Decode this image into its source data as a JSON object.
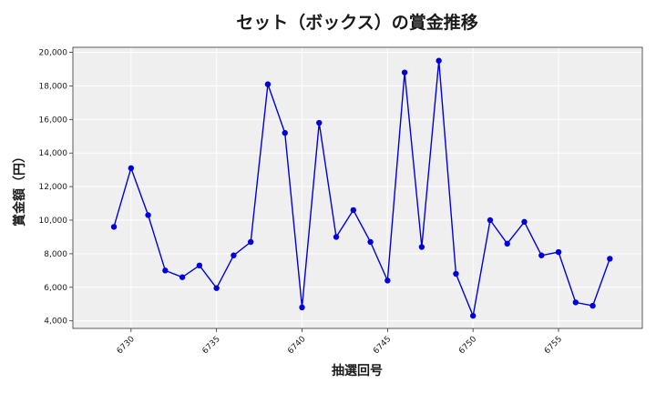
{
  "chart_data": {
    "type": "line",
    "title": "セット（ボックス）の賞金推移",
    "xlabel": "抽選回号",
    "ylabel": "賞金額（円）",
    "x": [
      6729,
      6730,
      6731,
      6732,
      6733,
      6734,
      6735,
      6736,
      6737,
      6738,
      6739,
      6740,
      6741,
      6742,
      6743,
      6744,
      6745,
      6746,
      6747,
      6748,
      6749,
      6750,
      6751,
      6752,
      6753,
      6754,
      6755,
      6756,
      6757,
      6758
    ],
    "series": [
      {
        "values": [
          9600,
          13100,
          10300,
          7000,
          6600,
          7300,
          5950,
          7900,
          8700,
          18100,
          15200,
          4800,
          15800,
          9000,
          10600,
          8700,
          6400,
          18800,
          8400,
          19500,
          6800,
          4300,
          10000,
          8600,
          9900,
          7900,
          8100,
          5100,
          4900,
          7700
        ],
        "color": "#0000dd"
      }
    ],
    "xlim": [
      6726.6,
      6759.9
    ],
    "ylim": [
      3550,
      20300
    ],
    "xticks": [
      6730,
      6735,
      6740,
      6745,
      6750,
      6755
    ],
    "xtick_labels": [
      "6730",
      "6735",
      "6740",
      "6745",
      "6750",
      "6755"
    ],
    "yticks": [
      4000,
      6000,
      8000,
      10000,
      12000,
      14000,
      16000,
      18000,
      20000
    ],
    "ytick_labels": [
      "4,000",
      "6,000",
      "8,000",
      "10,000",
      "12,000",
      "14,000",
      "16,000",
      "18,000",
      "20,000"
    ],
    "grid": true,
    "background": "#efefef"
  }
}
